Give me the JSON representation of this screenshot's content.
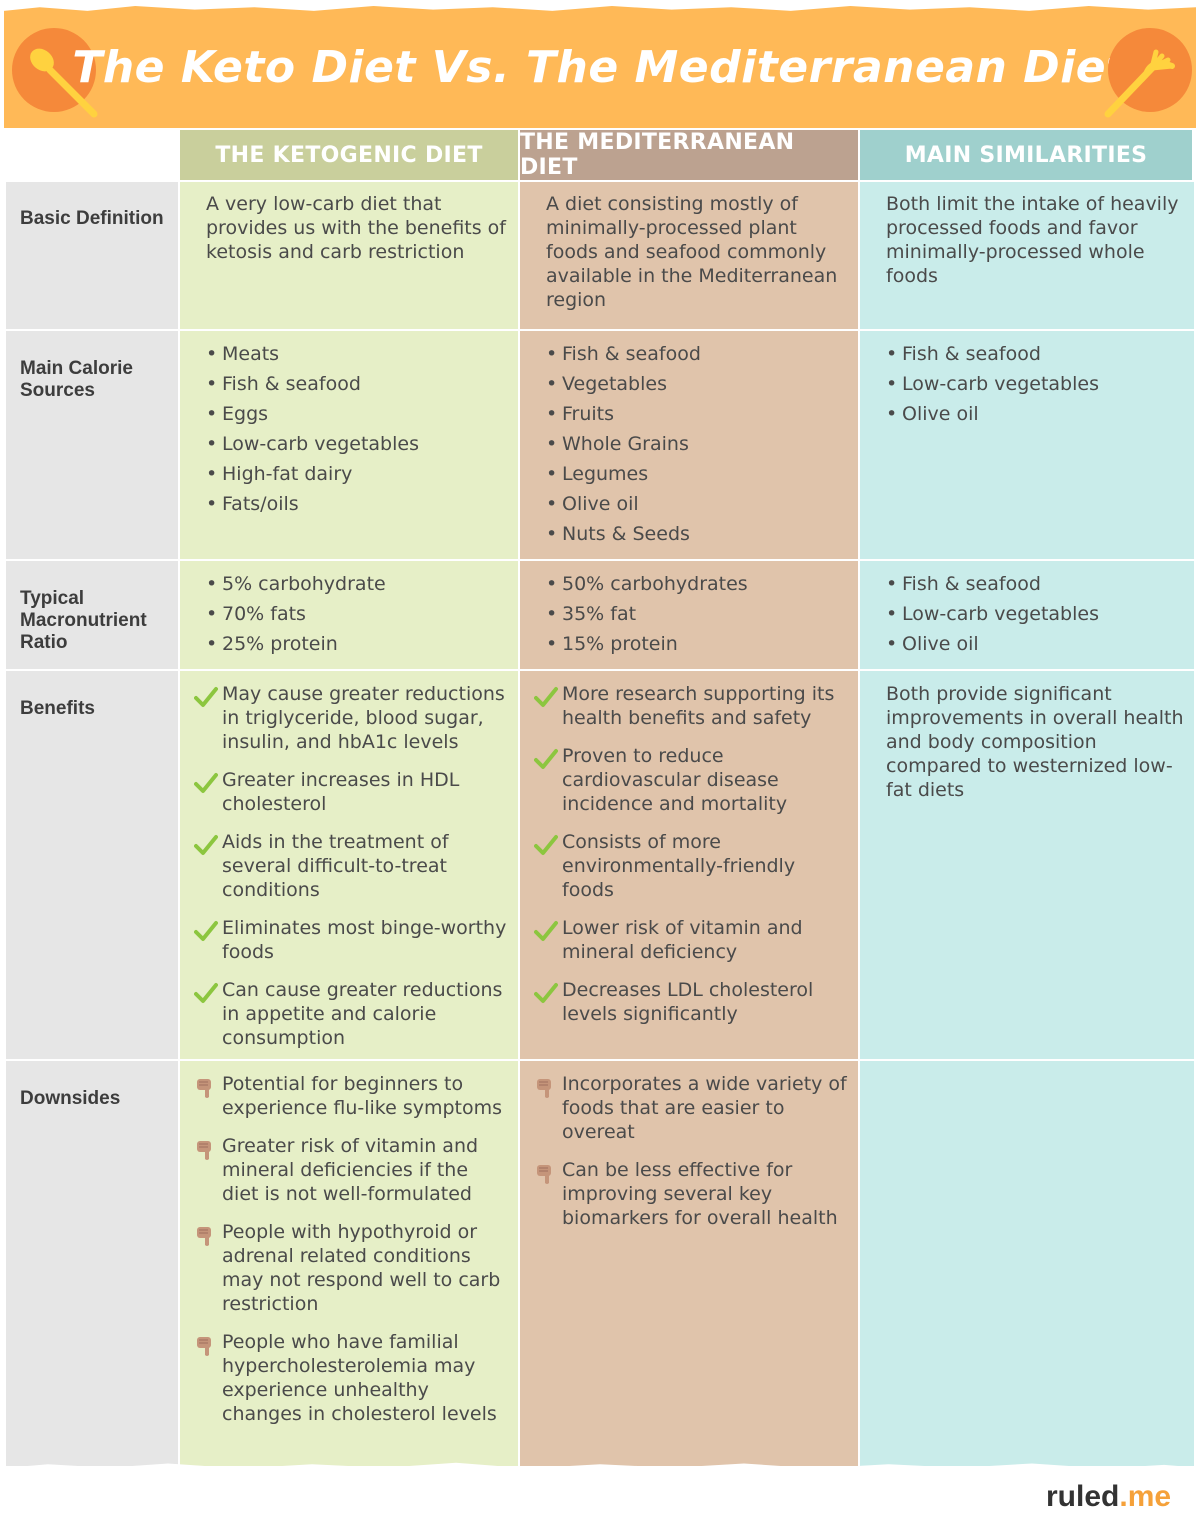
{
  "title": "The Keto Diet Vs. The Mediterranean Diet",
  "colors": {
    "banner": "#ffb957",
    "icon_circle": "#f5893a",
    "icon_utensil": "#ffd23f",
    "keto_header": "#c9cf9c",
    "med_header": "#bca290",
    "sim_header": "#9fd0cd",
    "check": "#8cc63f",
    "thumb": "#c5957a",
    "brand_accent": "#f5a13a"
  },
  "columns": {
    "keto": "THE KETOGENIC DIET",
    "med": "THE MEDITERRANEAN DIET",
    "sim": "MAIN SIMILARITIES"
  },
  "rows": {
    "definition": {
      "label": "Basic Definition",
      "keto": "A very low-carb diet that provides us with the benefits of ketosis and carb restriction",
      "med": "A diet consisting mostly of minimally-processed plant foods and seafood commonly available in the Mediterranean region",
      "sim": "Both limit the intake of heavily processed foods and favor minimally-processed whole foods"
    },
    "calories": {
      "label": "Main Calorie Sources",
      "keto": [
        "Meats",
        "Fish & seafood",
        "Eggs",
        "Low-carb vegetables",
        "High-fat dairy",
        "Fats/oils"
      ],
      "med": [
        "Fish & seafood",
        "Vegetables",
        "Fruits",
        "Whole Grains",
        "Legumes",
        "Olive oil",
        "Nuts & Seeds"
      ],
      "sim": [
        "Fish & seafood",
        "Low-carb vegetables",
        "Olive oil"
      ]
    },
    "macros": {
      "label": "Typical Macronutrient Ratio",
      "keto": [
        "5% carbohydrate",
        "70% fats",
        "25% protein"
      ],
      "med": [
        "50% carbohydrates",
        "35% fat",
        "15% protein"
      ],
      "sim": [
        "Fish & seafood",
        "Low-carb vegetables",
        "Olive oil"
      ]
    },
    "benefits": {
      "label": "Benefits",
      "keto": [
        "May cause greater reductions in triglyceride, blood sugar, insulin, and hbA1c levels",
        "Greater increases in HDL cholesterol",
        "Aids in the treatment of several difficult-to-treat conditions",
        "Eliminates most binge-worthy foods",
        "Can cause greater reductions in appetite and calorie consumption"
      ],
      "med": [
        "More research supporting its health benefits and safety",
        "Proven to reduce cardiovascular disease incidence and mortality",
        "Consists of more environmentally-friendly foods",
        "Lower risk of vitamin and mineral deficiency",
        "Decreases LDL cholesterol levels significantly"
      ],
      "sim": "Both provide significant improvements in overall health and body composition compared to westernized low-fat diets"
    },
    "downsides": {
      "label": "Downsides",
      "keto": [
        "Potential for beginners to experience flu-like symptoms",
        "Greater risk of vitamin and mineral deficiencies if the diet is not well-formulated",
        "People with hypothyroid or adrenal related conditions may not respond well to carb restriction",
        "People who have familial hypercholesterolemia may experience unhealthy changes in cholesterol levels"
      ],
      "med": [
        "Incorporates a wide variety of foods that are easier to overeat",
        "Can be less effective for improving several key biomarkers for overall health"
      ]
    }
  },
  "brand": {
    "name": "ruled",
    "suffix": ".me"
  }
}
